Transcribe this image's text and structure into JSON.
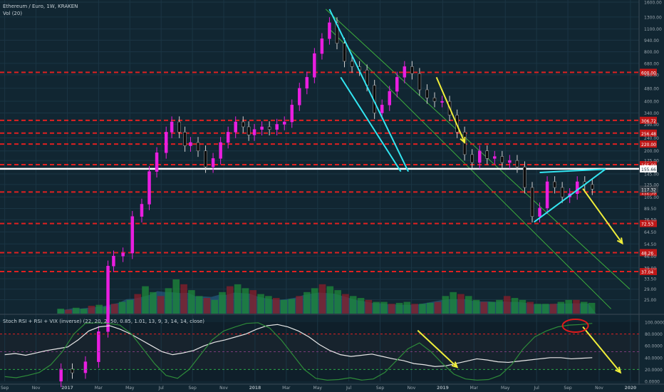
{
  "header": {
    "symbol": "Ethereum / Euro, 1W, KRAKEN",
    "volume": "Vol (20)",
    "indicator": "Stoch RSI + RSI + VIX (inverse) (22, 20, 2, 50, 0.85, 1.01, 13, 9, 3, 14, 14, close)"
  },
  "colors": {
    "background": "#112632",
    "up": "#e91ee0",
    "down": "#0b0b0b",
    "level": "#e02020",
    "current_level": "#ffffff",
    "cyan": "#33e6f2",
    "yellow": "#f0ef3a",
    "channel": "#3dae3d",
    "volume_area": "#2b6a96",
    "stoch_k": "#e8e8e8",
    "stoch_d": "#2e8b3a"
  },
  "chart_data": [
    {
      "type": "candlestick",
      "title": "Ethereum / Euro, 1W, KRAKEN",
      "scale": "log",
      "ylim": [
        21,
        1600
      ],
      "y_ticks": [
        1600,
        1300,
        1100,
        940,
        800,
        680,
        580,
        480,
        400,
        340,
        290,
        240,
        200,
        175,
        145,
        125,
        105,
        89.5,
        76.5,
        64.5,
        54.5,
        46,
        39,
        33.5,
        29,
        25
      ],
      "x_ticks": [
        "Sep",
        "Nov",
        "2017",
        "Mar",
        "May",
        "Jul",
        "Sep",
        "Nov",
        "2018",
        "Mar",
        "May",
        "Jul",
        "Sep",
        "Nov",
        "2019",
        "Mar",
        "May",
        "Jul",
        "Sep",
        "Nov",
        "2020"
      ],
      "levels": [
        {
          "value": 600,
          "label": "600.00"
        },
        {
          "value": 306.72,
          "label": "306.72"
        },
        {
          "value": 256.48,
          "label": "256.48"
        },
        {
          "value": 220,
          "label": "220.00"
        },
        {
          "value": 165,
          "label": "165.00"
        },
        {
          "value": 112.59,
          "label": "112.59"
        },
        {
          "value": 72.53,
          "label": "72.53"
        },
        {
          "value": 48.26,
          "label": "48.26"
        },
        {
          "value": 37.04,
          "label": "37.04"
        }
      ],
      "current_level": {
        "value": 155.66,
        "label": "155.66"
      },
      "last_price": {
        "value": 117.32,
        "label": "117.32"
      },
      "candles": [
        [
          2016.97,
          8,
          9.5
        ],
        [
          2017.03,
          9.5,
          9
        ],
        [
          2017.1,
          9,
          10.5
        ],
        [
          2017.17,
          10.5,
          16
        ],
        [
          2017.22,
          16,
          40
        ],
        [
          2017.25,
          40,
          46
        ],
        [
          2017.3,
          46,
          48
        ],
        [
          2017.35,
          48,
          80
        ],
        [
          2017.4,
          80,
          95
        ],
        [
          2017.44,
          95,
          150
        ],
        [
          2017.48,
          150,
          195
        ],
        [
          2017.53,
          195,
          260
        ],
        [
          2017.56,
          260,
          300
        ],
        [
          2017.6,
          300,
          260
        ],
        [
          2017.63,
          260,
          215
        ],
        [
          2017.66,
          215,
          225
        ],
        [
          2017.7,
          225,
          200
        ],
        [
          2017.74,
          200,
          160
        ],
        [
          2017.78,
          160,
          180
        ],
        [
          2017.82,
          180,
          225
        ],
        [
          2017.86,
          225,
          260
        ],
        [
          2017.9,
          260,
          300
        ],
        [
          2017.94,
          300,
          280
        ],
        [
          2017.97,
          280,
          250
        ],
        [
          2018.0,
          250,
          270
        ],
        [
          2018.04,
          270,
          280
        ],
        [
          2018.08,
          280,
          270
        ],
        [
          2018.12,
          270,
          290
        ],
        [
          2018.16,
          290,
          300
        ],
        [
          2018.2,
          300,
          380
        ],
        [
          2018.24,
          380,
          480
        ],
        [
          2018.28,
          480,
          560
        ],
        [
          2018.32,
          560,
          780
        ],
        [
          2018.36,
          780,
          960
        ],
        [
          2018.4,
          960,
          1200
        ],
        [
          2018.44,
          1200,
          900
        ],
        [
          2018.48,
          900,
          700
        ],
        [
          2018.52,
          700,
          650
        ],
        [
          2018.56,
          650,
          620
        ],
        [
          2018.6,
          620,
          500
        ],
        [
          2018.64,
          500,
          340
        ],
        [
          2018.68,
          340,
          380
        ],
        [
          2018.72,
          380,
          460
        ],
        [
          2018.76,
          460,
          560
        ],
        [
          2018.8,
          560,
          650
        ],
        [
          2018.84,
          650,
          590
        ],
        [
          2018.88,
          590,
          470
        ],
        [
          2018.92,
          470,
          420
        ],
        [
          2018.96,
          420,
          400
        ],
        [
          2019.0,
          400,
          400
        ],
        [
          2019.04,
          400,
          330
        ],
        [
          2019.08,
          330,
          260
        ],
        [
          2019.12,
          260,
          190
        ],
        [
          2019.16,
          190,
          170
        ],
        [
          2019.2,
          170,
          200
        ],
        [
          2019.24,
          200,
          180
        ],
        [
          2019.28,
          180,
          185
        ],
        [
          2019.32,
          185,
          170
        ],
        [
          2019.36,
          170,
          175
        ],
        [
          2019.4,
          175,
          160
        ],
        [
          2019.44,
          160,
          120
        ],
        [
          2019.48,
          120,
          80
        ],
        [
          2019.52,
          80,
          90
        ],
        [
          2019.56,
          90,
          130
        ],
        [
          2019.6,
          130,
          120
        ],
        [
          2019.64,
          120,
          105
        ],
        [
          2019.68,
          105,
          110
        ],
        [
          2019.72,
          110,
          130
        ],
        [
          2019.76,
          130,
          125
        ],
        [
          2019.8,
          125,
          117.3
        ]
      ]
    },
    {
      "type": "bar",
      "title": "Vol (20)",
      "note": "relative volume heights",
      "values": [
        5,
        4,
        6,
        5,
        8,
        9,
        7,
        10,
        12,
        14,
        20,
        28,
        22,
        18,
        26,
        35,
        30,
        24,
        18,
        16,
        14,
        22,
        28,
        30,
        26,
        24,
        20,
        18,
        16,
        14,
        15,
        18,
        22,
        26,
        30,
        28,
        24,
        20,
        18,
        16,
        14,
        12,
        12,
        10,
        11,
        12,
        10,
        10,
        11,
        12,
        18,
        22,
        20,
        18,
        14,
        12,
        12,
        14,
        18,
        16,
        14,
        12,
        10,
        10,
        10,
        12,
        14,
        14,
        12,
        11
      ]
    },
    {
      "type": "line",
      "title": "Stoch RSI + RSI + VIX (inverse) (22, 20, 2, 50, 0.85, 1.01, 13, 9, 3, 14, 14, close)",
      "ylim": [
        0,
        100
      ],
      "y_ticks": [
        "100.0000",
        "80.0000",
        "60.0000",
        "40.0000",
        "20.0000",
        "0.0000"
      ],
      "levels": [
        80,
        50,
        20
      ],
      "series": [
        {
          "values": [
            45,
            47,
            44,
            48,
            52,
            55,
            58,
            70,
            85,
            92,
            94,
            88,
            80,
            70,
            60,
            50,
            45,
            48,
            52,
            60,
            66,
            70,
            75,
            80,
            88,
            94,
            96,
            92,
            85,
            75,
            62,
            52,
            45,
            42,
            44,
            46,
            42,
            38,
            35,
            30,
            28,
            25,
            26,
            30,
            34,
            38,
            36,
            33,
            32,
            34,
            36,
            38,
            40,
            40,
            38,
            39,
            40
          ]
        },
        {
          "values": [
            8,
            6,
            10,
            15,
            28,
            50,
            80,
            98,
            99,
            98,
            95,
            80,
            55,
            30,
            10,
            5,
            20,
            45,
            70,
            85,
            92,
            98,
            99,
            90,
            70,
            45,
            20,
            5,
            2,
            3,
            6,
            2,
            4,
            15,
            35,
            55,
            65,
            50,
            30,
            12,
            4,
            2,
            3,
            10,
            28,
            55,
            75,
            85,
            92,
            95,
            96,
            98
          ]
        }
      ]
    }
  ]
}
